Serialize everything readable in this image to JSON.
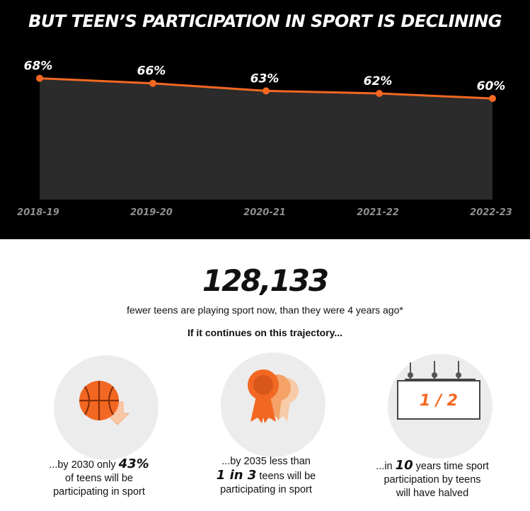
{
  "header": {
    "title": "BUT TEEN’S PARTICIPATION IN SPORT IS DECLINING"
  },
  "chart_data": {
    "type": "area",
    "title": "BUT TEEN’S PARTICIPATION IN SPORT IS DECLINING",
    "categories": [
      "2018-19",
      "2019-20",
      "2020-21",
      "2021-22",
      "2022-23"
    ],
    "values": [
      68,
      66,
      63,
      62,
      60
    ],
    "value_labels": [
      "68%",
      "66%",
      "63%",
      "62%",
      "60%"
    ],
    "xlabel": "",
    "ylabel": "",
    "ylim": [
      20,
      76
    ],
    "grid": false,
    "colors": {
      "line": "#f26822",
      "fill": "#2b2b2b",
      "background": "#000000"
    }
  },
  "stat": {
    "number": "128,133",
    "caption": "fewer teens are playing sport now, than they were 4 years ago*",
    "trajectory": "If it continues on this trajectory..."
  },
  "projections": [
    {
      "icon": "basketball-down-icon",
      "pre": "...by 2030 only ",
      "emph": "43%",
      "line2": "of teens will be",
      "line3": "participating in sport"
    },
    {
      "icon": "rosette-icon",
      "pre": "...by 2035 less than",
      "emph": "1 in 3",
      "line2_rest": " teens will be",
      "line3": "participating in sport"
    },
    {
      "icon": "scoreboard-icon",
      "board": "1 / 2",
      "pre": "...in ",
      "emph": "10",
      "line1_rest": " years time sport",
      "line2": "participation by teens",
      "line3": "will have halved"
    }
  ],
  "colors": {
    "accent": "#f26822",
    "circle": "#ececec"
  }
}
